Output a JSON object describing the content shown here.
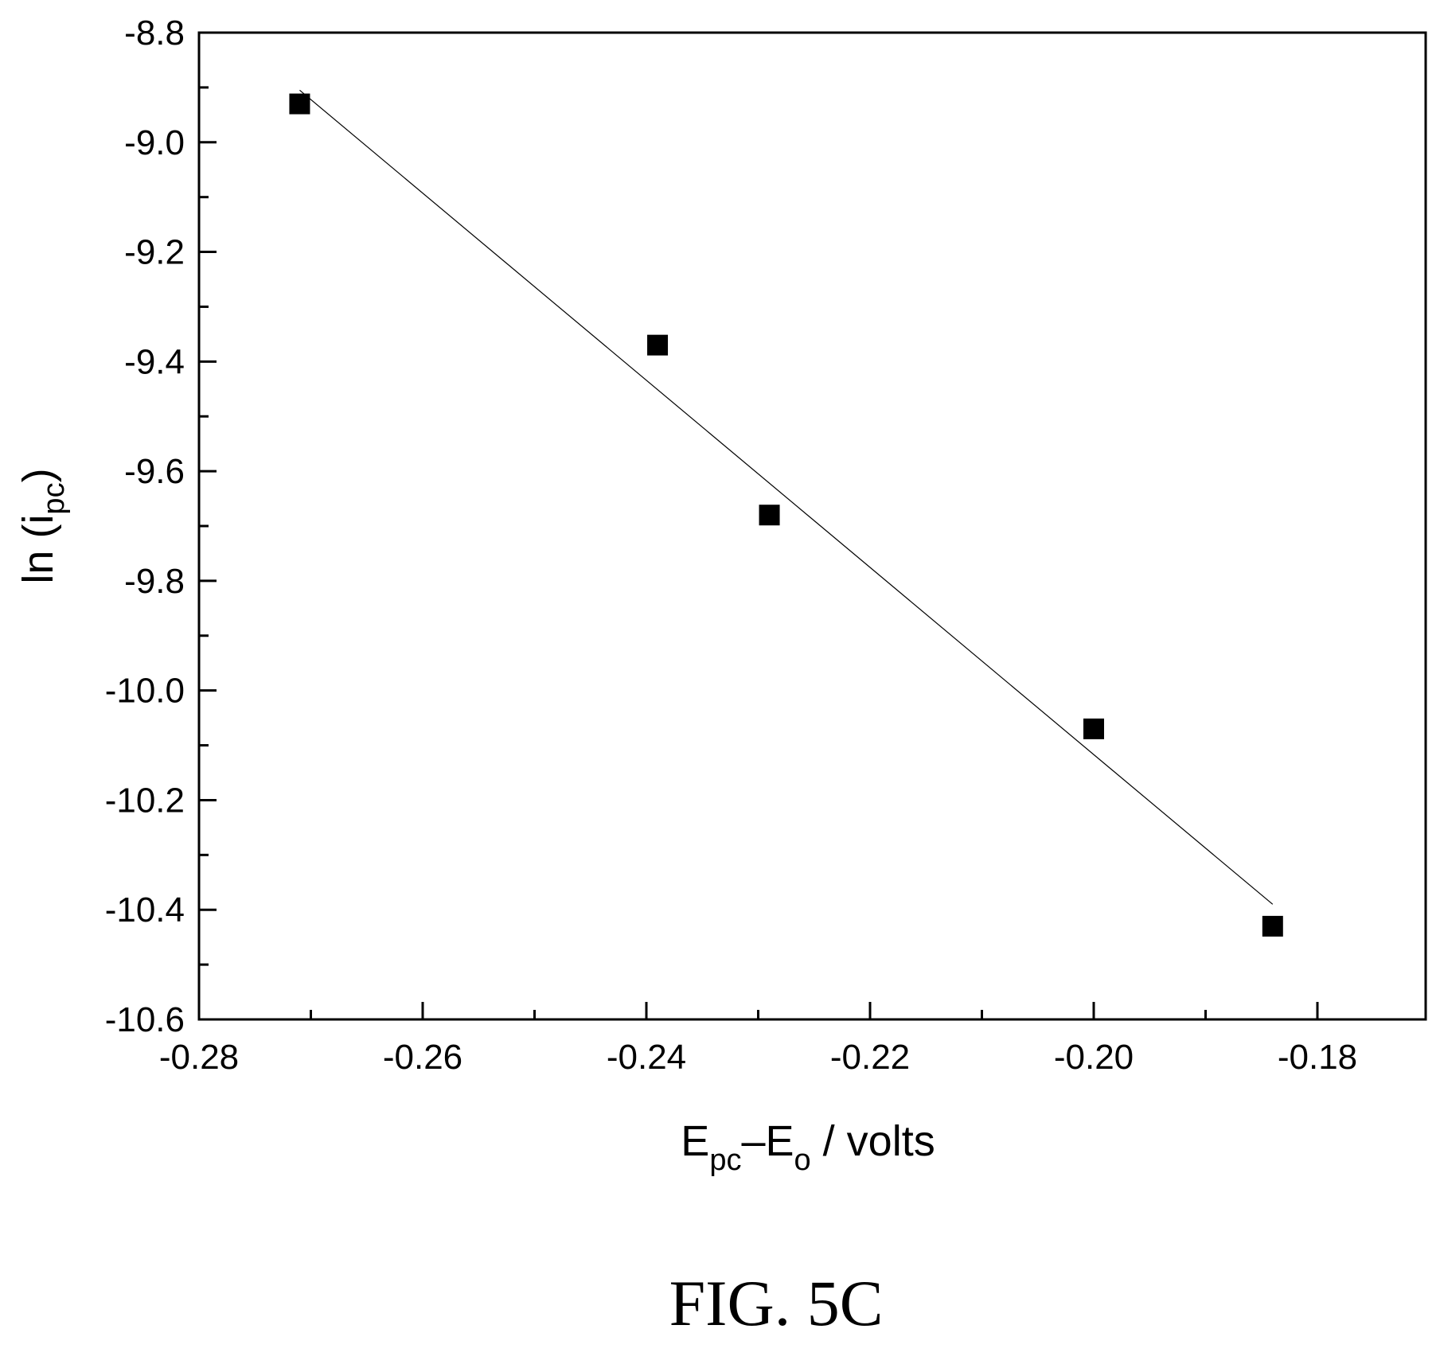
{
  "chart_data": {
    "type": "scatter",
    "x_ticks": [
      "-0.28",
      "-0.26",
      "-0.24",
      "-0.22",
      "-0.20",
      "-0.18"
    ],
    "y_ticks": [
      "-8.8",
      "-9.0",
      "-9.2",
      "-9.4",
      "-9.6",
      "-9.8",
      "-10.0",
      "-10.2",
      "-10.4",
      "-10.6"
    ],
    "xlim": [
      -0.28,
      -0.17
    ],
    "ylim": [
      -10.6,
      -8.8
    ],
    "xlabel": {
      "base1": "E",
      "sub1": "pc",
      "mid": "–E",
      "sub2": "o",
      "tail": " / volts"
    },
    "ylabel": {
      "base": "ln (i",
      "sub": "pc",
      "tail": ")"
    },
    "grid": false,
    "series": [
      {
        "marker": "square",
        "x": [
          -0.271,
          -0.239,
          -0.229,
          -0.2,
          -0.184
        ],
        "y": [
          -8.93,
          -9.37,
          -9.68,
          -10.07,
          -10.43
        ]
      }
    ],
    "fit_line": {
      "x": [
        -0.271,
        -0.184
      ],
      "y": [
        -8.905,
        -10.39
      ]
    },
    "colors": {
      "marker": "#000000",
      "line": "#000000",
      "axis": "#000000"
    }
  },
  "caption": "FIG. 5C"
}
